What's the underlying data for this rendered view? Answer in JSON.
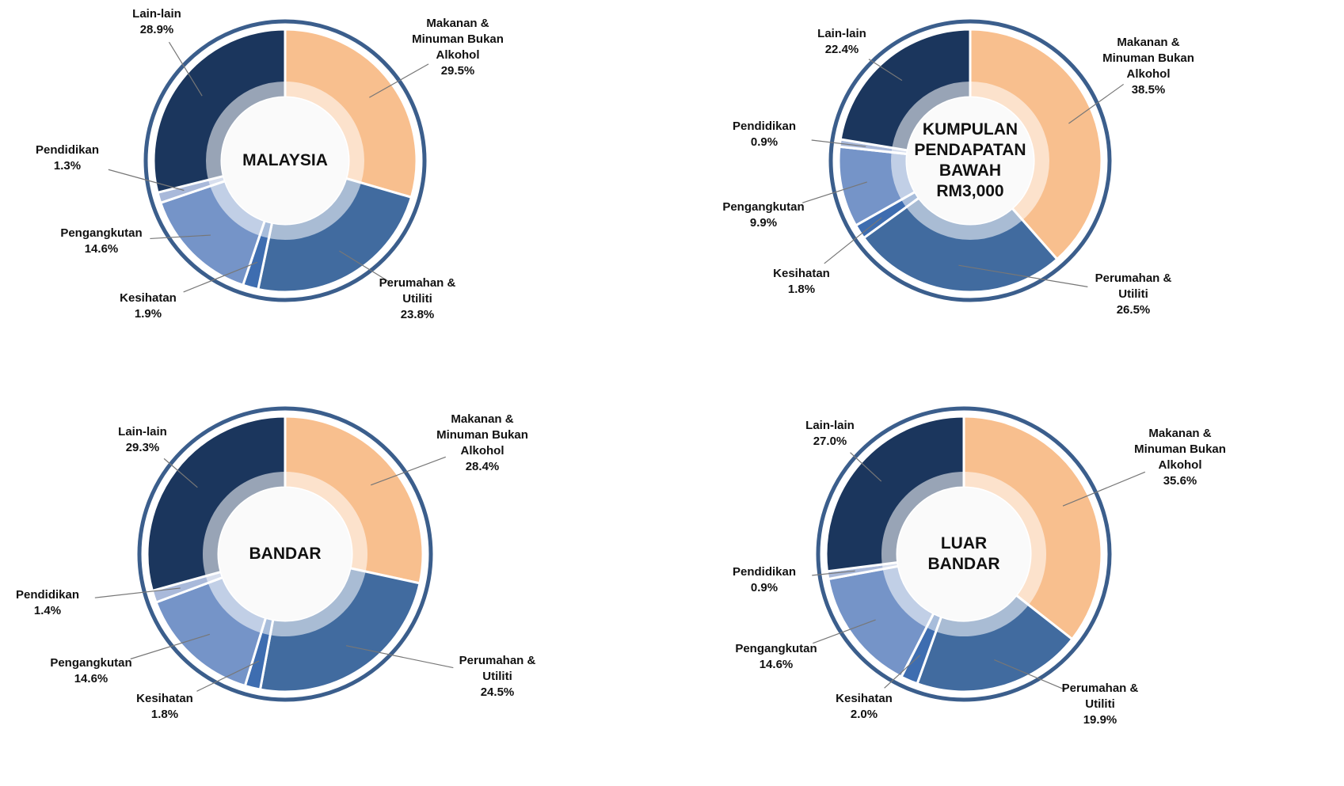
{
  "chart_data": [
    {
      "type": "donut",
      "center_label": "MALAYSIA",
      "categories": [
        "Makanan & Minuman Bukan Alkohol",
        "Perumahan & Utiliti",
        "Kesihatan",
        "Pengangkutan",
        "Pendidikan",
        "Lain-lain"
      ],
      "values": [
        29.5,
        23.8,
        1.9,
        14.6,
        1.3,
        28.9
      ],
      "value_labels": [
        "29.5%",
        "23.8%",
        "1.9%",
        "14.6%",
        "1.3%",
        "28.9%"
      ],
      "colors": [
        "#f8bf8e",
        "#416b9f",
        "#3e6db0",
        "#7594c8",
        "#a9b9da",
        "#1b365d"
      ]
    },
    {
      "type": "donut",
      "center_label": "KUMPULAN PENDAPATAN BAWAH RM3,000",
      "categories": [
        "Makanan & Minuman Bukan Alkohol",
        "Perumahan & Utiliti",
        "Kesihatan",
        "Pengangkutan",
        "Pendidikan",
        "Lain-lain"
      ],
      "values": [
        38.5,
        26.5,
        1.8,
        9.9,
        0.9,
        22.4
      ],
      "value_labels": [
        "38.5%",
        "26.5%",
        "1.8%",
        "9.9%",
        "0.9%",
        "22.4%"
      ],
      "colors": [
        "#f8bf8e",
        "#416b9f",
        "#3e6db0",
        "#7594c8",
        "#a9b9da",
        "#1b365d"
      ]
    },
    {
      "type": "donut",
      "center_label": "BANDAR",
      "categories": [
        "Makanan & Minuman Bukan Alkohol",
        "Perumahan & Utiliti",
        "Kesihatan",
        "Pengangkutan",
        "Pendidikan",
        "Lain-lain"
      ],
      "values": [
        28.4,
        24.5,
        1.8,
        14.6,
        1.4,
        29.3
      ],
      "value_labels": [
        "28.4%",
        "24.5%",
        "1.8%",
        "14.6%",
        "1.4%",
        "29.3%"
      ],
      "colors": [
        "#f8bf8e",
        "#416b9f",
        "#3e6db0",
        "#7594c8",
        "#a9b9da",
        "#1b365d"
      ]
    },
    {
      "type": "donut",
      "center_label": "LUAR BANDAR",
      "categories": [
        "Makanan & Minuman Bukan Alkohol",
        "Perumahan & Utiliti",
        "Kesihatan",
        "Pengangkutan",
        "Pendidikan",
        "Lain-lain"
      ],
      "values": [
        35.6,
        19.9,
        2.0,
        14.6,
        0.9,
        27.0
      ],
      "value_labels": [
        "35.6%",
        "19.9%",
        "2.0%",
        "14.6%",
        "0.9%",
        "27.0%"
      ],
      "colors": [
        "#f8bf8e",
        "#416b9f",
        "#3e6db0",
        "#7594c8",
        "#a9b9da",
        "#1b365d"
      ]
    }
  ]
}
